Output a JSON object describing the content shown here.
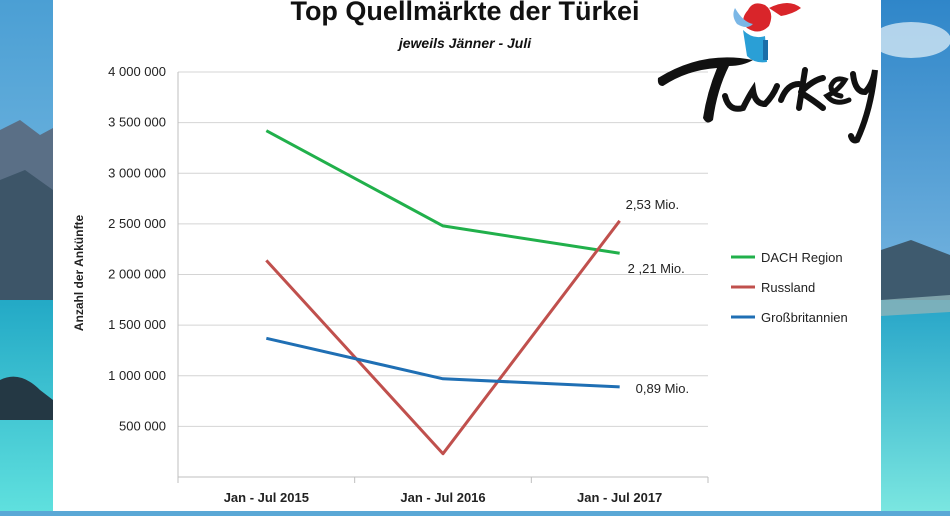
{
  "chart_data": {
    "type": "line",
    "title": "Top Quellmärkte der Türkei",
    "subtitle": "jeweils Jänner - Juli",
    "ylabel": "Anzahl der Ankünfte",
    "xlabel": "",
    "categories": [
      "Jan - Jul 2015",
      "Jan - Jul 2016",
      "Jan - Jul 2017"
    ],
    "ylim": [
      0,
      4000000
    ],
    "yticks": [
      500000,
      1000000,
      1500000,
      2000000,
      2500000,
      3000000,
      3500000,
      4000000
    ],
    "ytick_labels": [
      "500 000",
      "1 000 000",
      "1 500 000",
      "2 000 000",
      "2 500 000",
      "3 000 000",
      "3 500 000",
      "4 000 000"
    ],
    "grid": true,
    "legend_position": "right",
    "series": [
      {
        "name": "DACH Region",
        "color": "#21b04b",
        "values": [
          3420000,
          2480000,
          2210000
        ]
      },
      {
        "name": "Russland",
        "color": "#c0504d",
        "values": [
          2140000,
          230000,
          2530000
        ]
      },
      {
        "name": "Großbritannien",
        "color": "#1f6fb4",
        "values": [
          1370000,
          970000,
          890000
        ]
      }
    ],
    "annotations": [
      {
        "text": "2,53 Mio.",
        "series": "Russland"
      },
      {
        "text": "2 ,21 Mio.",
        "series": "DACH Region"
      },
      {
        "text": "0,89 Mio.",
        "series": "Großbritannien"
      }
    ]
  },
  "logo": {
    "text": "Turkey",
    "icon": "tulip-logo-icon"
  },
  "background": {
    "description_icon": "beach-photo",
    "sea_color": "#2fc3cf",
    "sky_color": "#5aa8d6"
  }
}
